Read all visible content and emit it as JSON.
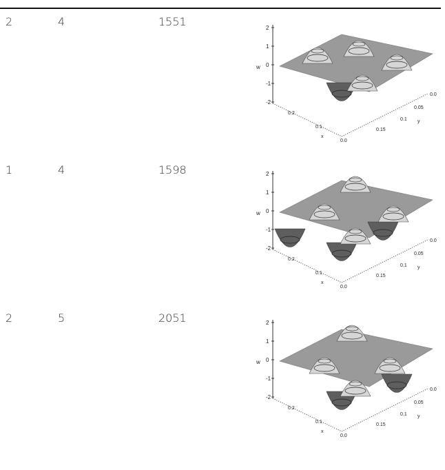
{
  "rows": [
    {
      "c1": "2",
      "c2": "4",
      "c3": "1551"
    },
    {
      "c1": "1",
      "c2": "4",
      "c3": "1598"
    },
    {
      "c1": "2",
      "c2": "5",
      "c3": "2051"
    }
  ],
  "plot_labels": {
    "w_axis": "w",
    "w_ticks": [
      "2",
      "1",
      "0",
      "-1",
      "-2"
    ],
    "x_axis": "x",
    "x_ticks": [
      "0.2",
      "0.1",
      "0.0"
    ],
    "y_axis": "y",
    "y_ticks": [
      "0.0",
      "0.05",
      "0.1",
      "0.15"
    ]
  },
  "colors": {
    "surface": "#9a9a9a",
    "peak": "#d6d6d6",
    "trough": "#5e5e5e",
    "rule": "#111111"
  }
}
